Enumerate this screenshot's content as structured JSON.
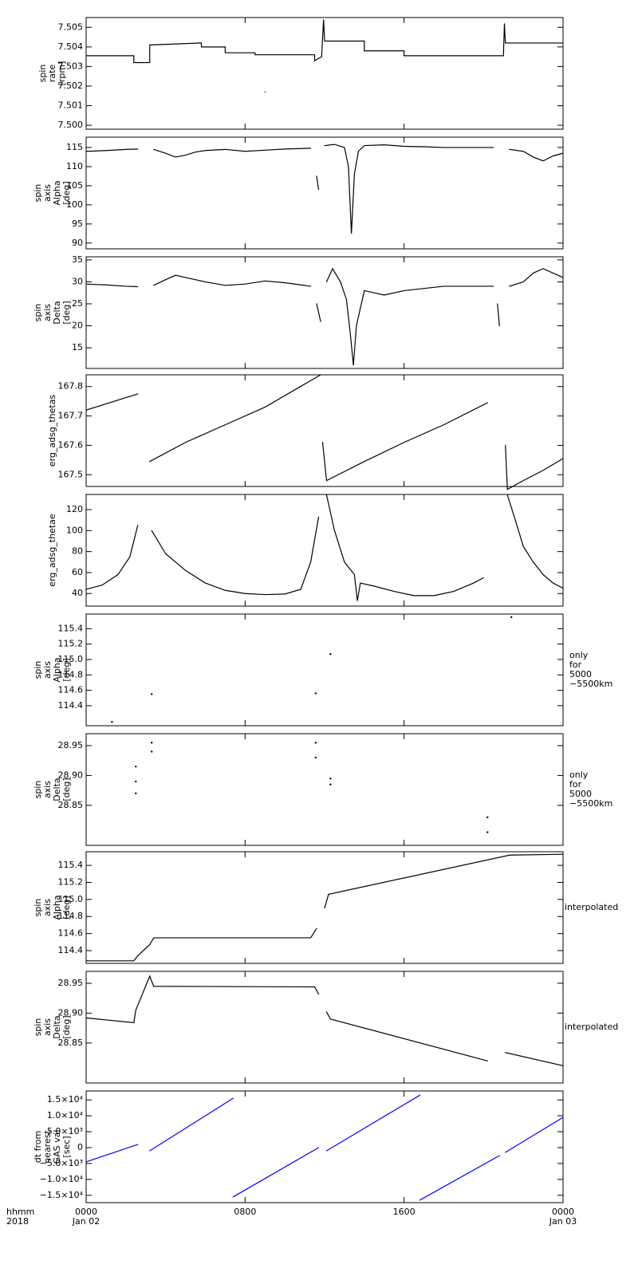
{
  "chart_data": [
    {
      "type": "line",
      "ylabel": [
        "spin",
        "rate",
        "[rpm]"
      ],
      "ylim": [
        7.4998,
        7.5055
      ],
      "xlim": [
        0,
        24
      ],
      "yticks": [
        {
          "value": 7.5,
          "label": "7.500"
        },
        7.501,
        7.502,
        7.503,
        7.504,
        7.505
      ],
      "series": [
        {
          "color": "#000000",
          "x": [
            0,
            2.4,
            2.4,
            3.2,
            3.2,
            5.8,
            5.8,
            7.0,
            7.0,
            8.5,
            8.5,
            11.5,
            11.5,
            11.85,
            11.95,
            12.0,
            14.0,
            14.0,
            16.0,
            16.0,
            21.0,
            21.05,
            21.1,
            24,
            9.0,
            9.0
          ],
          "values": [
            7.50355,
            7.50355,
            7.5032,
            7.5032,
            7.5041,
            7.5042,
            7.504,
            7.504,
            7.5037,
            7.5037,
            7.5036,
            7.5036,
            7.5033,
            7.5035,
            7.5054,
            7.5043,
            7.5043,
            7.5038,
            7.5038,
            7.50355,
            7.50355,
            7.5052,
            7.5042,
            7.5042,
            null,
            7.5017
          ]
        }
      ]
    },
    {
      "type": "line",
      "ylabel": [
        "spin",
        "axis",
        "Alpha",
        "[deg]"
      ],
      "ylim": [
        88.5,
        117.7
      ],
      "xlim": [
        0,
        24
      ],
      "yticks": [
        90,
        95,
        100,
        105,
        110,
        115
      ],
      "series": [
        {
          "color": "#000000",
          "x": [
            0,
            1,
            2,
            2.6,
            2.6,
            3.4,
            4,
            4.5,
            5,
            5.5,
            6,
            7,
            8,
            9,
            10,
            11.3,
            11.3,
            11.6,
            11.7,
            11.7,
            12.0,
            12.5,
            13.0,
            13.2,
            13.35,
            13.5,
            13.7,
            14,
            15,
            16,
            17,
            18,
            19,
            20.5,
            20.5,
            21.3,
            22,
            22.5,
            23,
            23.5,
            24
          ],
          "values": [
            114,
            114.2,
            114.5,
            114.6,
            null,
            114.5,
            113.5,
            112.5,
            113,
            113.8,
            114.2,
            114.5,
            114,
            114.3,
            114.6,
            114.8,
            null,
            107.5,
            104,
            null,
            115.5,
            115.8,
            115,
            110,
            92.5,
            108,
            114,
            115.5,
            115.7,
            115.3,
            115.2,
            115,
            115,
            115,
            null,
            114.5,
            114,
            112.5,
            111.5,
            112.8,
            113.5
          ]
        }
      ]
    },
    {
      "type": "line",
      "ylabel": [
        "spin",
        "axis",
        "Delta",
        "[deg]"
      ],
      "ylim": [
        10.3,
        35.7
      ],
      "xlim": [
        0,
        24
      ],
      "yticks": [
        15,
        20,
        25,
        30,
        35
      ],
      "series": [
        {
          "color": "#000000",
          "x": [
            0,
            1,
            2,
            2.6,
            2.6,
            3.4,
            4,
            4.5,
            5,
            6,
            7,
            8,
            9,
            10,
            11.3,
            11.3,
            11.6,
            11.8,
            11.8,
            12.1,
            12.4,
            12.8,
            13.1,
            13.3,
            13.45,
            13.6,
            14,
            14.5,
            15,
            16,
            17,
            18,
            19,
            20.5,
            20.5,
            20.7,
            20.8,
            20.8,
            21.3,
            22,
            22.5,
            23,
            23.5,
            24
          ],
          "values": [
            29.5,
            29.3,
            29,
            28.9,
            null,
            29.2,
            30.5,
            31.5,
            31,
            30,
            29.2,
            29.5,
            30.2,
            29.8,
            29,
            null,
            25,
            21,
            null,
            30,
            33,
            30,
            26,
            18,
            11,
            20,
            28,
            27.5,
            27,
            28,
            28.5,
            29,
            29,
            29,
            null,
            25,
            20,
            null,
            29,
            30,
            32,
            33,
            32,
            31
          ]
        }
      ]
    },
    {
      "type": "line",
      "ylabel": [
        "erg_adsg_thetas"
      ],
      "ylim": [
        167.46,
        167.84
      ],
      "xlim": [
        0,
        24
      ],
      "yticks": [
        167.5,
        167.6,
        167.7,
        167.8
      ],
      "series": [
        {
          "color": "#000000",
          "x": [
            0,
            2.6,
            2.6,
            3.2,
            5,
            7,
            9,
            11.8,
            11.8,
            11.9,
            12.1,
            14,
            16,
            18,
            20.2,
            20.2,
            21.1,
            21.2,
            22,
            23,
            24
          ],
          "values": [
            167.72,
            167.775,
            null,
            167.545,
            167.61,
            167.67,
            167.73,
            167.84,
            null,
            167.61,
            167.48,
            167.545,
            167.61,
            167.67,
            167.745,
            null,
            167.6,
            167.45,
            167.48,
            167.515,
            167.555
          ]
        }
      ]
    },
    {
      "type": "line",
      "ylabel": [
        "erg_adsg_thetae"
      ],
      "ylim": [
        28,
        134.5
      ],
      "xlim": [
        0,
        24
      ],
      "yticks": [
        40,
        60,
        80,
        100,
        120
      ],
      "series": [
        {
          "color": "#000000",
          "x": [
            0,
            0.8,
            1.6,
            2.2,
            2.6,
            2.6,
            3.3,
            4,
            5,
            6,
            7,
            8,
            9,
            10,
            10.8,
            11.3,
            11.7,
            11.9,
            12.1,
            12.5,
            13,
            13.5,
            13.65,
            13.8,
            14.5,
            15.5,
            16.5,
            17.5,
            18.5,
            19.5,
            20.0,
            20.0,
            21.2,
            21.6,
            22,
            22.5,
            23,
            23.5,
            24
          ],
          "values": [
            44,
            48,
            58,
            75,
            105,
            null,
            100,
            78,
            62,
            50,
            43,
            40,
            39,
            39.5,
            44,
            70,
            113,
            null,
            134,
            100,
            70,
            58,
            33,
            50,
            47,
            42,
            38,
            38,
            42,
            50,
            55,
            null,
            134,
            110,
            85,
            70,
            58,
            50,
            45
          ]
        }
      ]
    },
    {
      "type": "scatter",
      "ylabel": [
        "spin",
        "axis",
        "Alpha",
        "[deg]"
      ],
      "note": [
        "only",
        "for",
        "5000",
        "−5500km"
      ],
      "ylim": [
        114.14,
        115.59
      ],
      "xlim": [
        0,
        24
      ],
      "yticks": [
        114.4,
        114.6,
        114.8,
        {
          "value": 115,
          "label": "115.0"
        },
        115.2,
        115.4
      ],
      "series": [
        {
          "color": "#000000",
          "x": [
            1.3,
            3.3,
            11.55,
            12.3,
            21.4
          ],
          "values": [
            114.19,
            114.55,
            114.56,
            115.07,
            115.55
          ]
        }
      ]
    },
    {
      "type": "scatter",
      "ylabel": [
        "spin",
        "axis",
        "Delta",
        "[deg]"
      ],
      "note": [
        "only",
        "for",
        "5000",
        "−5500km"
      ],
      "ylim": [
        28.783,
        28.97
      ],
      "xlim": [
        0,
        24
      ],
      "yticks": [
        28.85,
        {
          "value": 28.9,
          "label": "28.90"
        },
        28.95
      ],
      "series": [
        {
          "color": "#000000",
          "x": [
            2.5,
            2.5,
            2.5,
            3.3,
            3.3,
            11.55,
            11.55,
            12.3,
            12.3,
            20.2,
            20.2
          ],
          "values": [
            28.87,
            28.89,
            28.915,
            28.94,
            28.955,
            28.93,
            28.955,
            28.885,
            28.895,
            28.805,
            28.83
          ]
        }
      ]
    },
    {
      "type": "line",
      "ylabel": [
        "spin",
        "axis",
        "Alpha",
        "[deg]"
      ],
      "note": [
        "interpolated"
      ],
      "ylim": [
        114.25,
        115.56
      ],
      "xlim": [
        0,
        24
      ],
      "yticks": [
        114.4,
        114.6,
        114.8,
        {
          "value": 115,
          "label": "115.0"
        },
        115.2,
        115.4
      ],
      "series": [
        {
          "color": "#000000",
          "x": [
            0,
            2.4,
            2.6,
            3.2,
            3.4,
            11.3,
            11.6,
            11.6,
            12.0,
            12.2,
            21.3,
            24
          ],
          "values": [
            114.28,
            114.28,
            114.34,
            114.47,
            114.55,
            114.55,
            114.66,
            null,
            114.9,
            115.06,
            115.52,
            115.53
          ]
        }
      ]
    },
    {
      "type": "line",
      "ylabel": [
        "spin",
        "axis",
        "Delta",
        "[deg]"
      ],
      "note": [
        "interpolated"
      ],
      "ylim": [
        28.783,
        28.97
      ],
      "xlim": [
        0,
        24
      ],
      "yticks": [
        28.85,
        {
          "value": 28.9,
          "label": "28.90"
        },
        28.95
      ],
      "series": [
        {
          "color": "#000000",
          "x": [
            0,
            2.4,
            2.5,
            3.2,
            3.4,
            11.5,
            11.7,
            11.7,
            12.1,
            12.3,
            20.2,
            20.2,
            21.1,
            24
          ],
          "values": [
            28.892,
            28.884,
            28.905,
            28.962,
            28.945,
            28.944,
            28.932,
            null,
            28.902,
            28.89,
            28.82,
            null,
            28.834,
            28.812
          ]
        }
      ]
    },
    {
      "type": "line",
      "ylabel": [
        "dt from",
        "nearest",
        "GAS val",
        "[sec]"
      ],
      "ylim": [
        -17300,
        17800
      ],
      "xlim": [
        0,
        24
      ],
      "yticks": [
        {
          "value": 15000,
          "label": "1.5×10⁴"
        },
        {
          "value": 10000,
          "label": "1.0×10⁴"
        },
        {
          "value": 5000,
          "label": "5.0×10³"
        },
        0,
        {
          "value": -5000,
          "label": "−5.0×10³"
        },
        {
          "value": -10000,
          "label": "−1.0×10⁴"
        },
        {
          "value": -15000,
          "label": "−1.5×10⁴"
        }
      ],
      "xticks": [
        {
          "value": 0,
          "label": "0000"
        },
        {
          "value": 8,
          "label": "0800"
        },
        {
          "value": 16,
          "label": "1600"
        },
        {
          "value": 24,
          "label": "0000"
        }
      ],
      "xdates": [
        {
          "value": 0,
          "label": "Jan 02"
        },
        {
          "value": 24,
          "label": "Jan 03"
        }
      ],
      "xaxis_label": [
        "hhmm",
        "2018"
      ],
      "series": [
        {
          "color": "#0000ff",
          "x": [
            0,
            2.6,
            2.6,
            3.2,
            7.4,
            7.4,
            7.4,
            11.7,
            11.7,
            12.1,
            16.8,
            16.8,
            16.8,
            20.8,
            20.8,
            21.1,
            24
          ],
          "values": [
            -4500,
            1000,
            null,
            -1000,
            15500,
            null,
            -15500,
            0,
            null,
            -1000,
            16500,
            null,
            -16500,
            -2500,
            null,
            -1500,
            9500
          ]
        }
      ]
    }
  ]
}
